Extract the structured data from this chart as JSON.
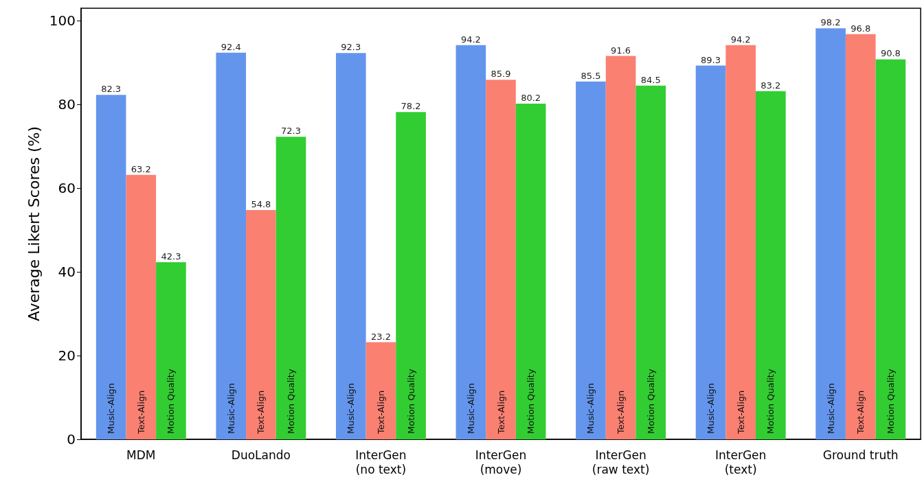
{
  "chart_data": {
    "type": "bar",
    "ylabel": "Average Likert Scores (%)",
    "categories": [
      "MDM",
      "DuoLando",
      "InterGen\n(no text)",
      "InterGen\n(move)",
      "InterGen\n(raw text)",
      "InterGen\n(text)",
      "Ground truth"
    ],
    "series": [
      {
        "name": "Music-Align",
        "color": "#6495ed",
        "values": [
          82.3,
          92.4,
          92.3,
          94.2,
          85.5,
          89.3,
          98.2
        ]
      },
      {
        "name": "Text-Align",
        "color": "#fa8072",
        "values": [
          63.2,
          54.8,
          23.2,
          85.9,
          91.6,
          94.2,
          96.8
        ]
      },
      {
        "name": "Motion Quality",
        "color": "#32cd32",
        "values": [
          42.3,
          72.3,
          78.2,
          80.2,
          84.5,
          83.2,
          90.8
        ]
      }
    ],
    "ylim": [
      0,
      103
    ],
    "yticks": [
      0,
      20,
      40,
      60,
      80,
      100
    ],
    "grid": false,
    "legend": false,
    "data_labels": true
  }
}
